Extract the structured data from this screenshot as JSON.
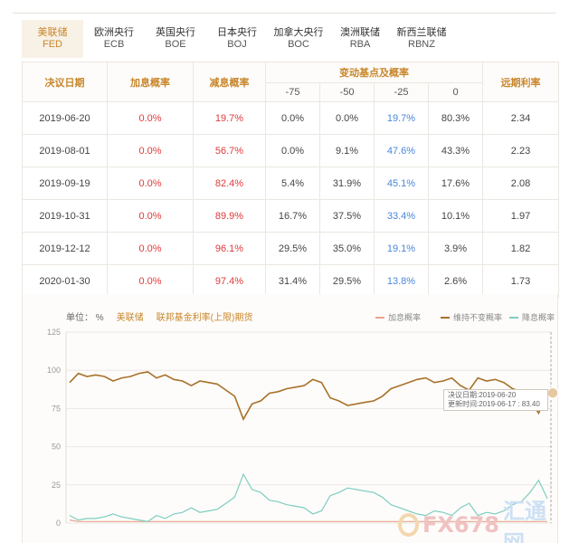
{
  "tabs": [
    {
      "cn": "美联储",
      "en": "FED",
      "active": true
    },
    {
      "cn": "欧洲央行",
      "en": "ECB"
    },
    {
      "cn": "英国央行",
      "en": "BOE"
    },
    {
      "cn": "日本央行",
      "en": "BOJ"
    },
    {
      "cn": "加拿大央行",
      "en": "BOC"
    },
    {
      "cn": "澳洲联储",
      "en": "RBA"
    },
    {
      "cn": "新西兰联储",
      "en": "RBNZ"
    }
  ],
  "table": {
    "headers": {
      "date": "决议日期",
      "hike": "加息概率",
      "cut": "减息概率",
      "change_group": "变动基点及概率",
      "bps": [
        "-75",
        "-50",
        "-25",
        "0"
      ],
      "forward": "远期利率"
    },
    "rows": [
      {
        "date": "2019-06-20",
        "hike": "0.0%",
        "cut": "19.7%",
        "m75": "0.0%",
        "m50": "0.0%",
        "m25": "19.7%",
        "z": "80.3%",
        "fwd": "2.34"
      },
      {
        "date": "2019-08-01",
        "hike": "0.0%",
        "cut": "56.7%",
        "m75": "0.0%",
        "m50": "9.1%",
        "m25": "47.6%",
        "z": "43.3%",
        "fwd": "2.23"
      },
      {
        "date": "2019-09-19",
        "hike": "0.0%",
        "cut": "82.4%",
        "m75": "5.4%",
        "m50": "31.9%",
        "m25": "45.1%",
        "z": "17.6%",
        "fwd": "2.08"
      },
      {
        "date": "2019-10-31",
        "hike": "0.0%",
        "cut": "89.9%",
        "m75": "16.7%",
        "m50": "37.5%",
        "m25": "33.4%",
        "z": "10.1%",
        "fwd": "1.97"
      },
      {
        "date": "2019-12-12",
        "hike": "0.0%",
        "cut": "96.1%",
        "m75": "29.5%",
        "m50": "35.0%",
        "m25": "19.1%",
        "z": "3.9%",
        "fwd": "1.82"
      },
      {
        "date": "2020-01-30",
        "hike": "0.0%",
        "cut": "97.4%",
        "m75": "31.4%",
        "m50": "29.5%",
        "m25": "13.8%",
        "z": "2.6%",
        "fwd": "1.73"
      }
    ]
  },
  "chart_head": {
    "unit": "单位： %",
    "bank": "美联储",
    "desc": "联邦基金利率(上限)期货"
  },
  "legend": {
    "hike": "加息概率",
    "hold": "维持不变概率",
    "cut": "降息概率"
  },
  "tooltip": {
    "line1": "决议日期:2019-06-20",
    "line2": "更新时间:2019-06-17 : 83.40"
  },
  "watermark": {
    "a": "FX678",
    "b": "汇通网"
  },
  "colors": {
    "accent": "#c8862b",
    "hold": "#a8712a",
    "hike": "#e8a48c",
    "cut": "#7ecdc0",
    "red": "#e03a3a",
    "blue": "#4a86d8"
  },
  "chart_data": {
    "type": "line",
    "ylim": [
      0,
      125
    ],
    "yticks": [
      "125",
      "100",
      "75",
      "50",
      "25",
      "0"
    ],
    "series": [
      {
        "name": "维持不变概率",
        "values": [
          92,
          98,
          96,
          97,
          96,
          93,
          95,
          96,
          98,
          99,
          95,
          97,
          94,
          93,
          90,
          93,
          92,
          91,
          87,
          83,
          68,
          78,
          80,
          85,
          86,
          88,
          89,
          90,
          94,
          92,
          82,
          80,
          77,
          78,
          79,
          80,
          83,
          88,
          90,
          92,
          94,
          95,
          92,
          93,
          95,
          90,
          87,
          95,
          93,
          94,
          92,
          88,
          86,
          80,
          72,
          84
        ]
      },
      {
        "name": "加息概率",
        "values": [
          2,
          1,
          1,
          1,
          1,
          1,
          1,
          1,
          1,
          1,
          1,
          1,
          1,
          1,
          1,
          1,
          1,
          1,
          1,
          1,
          1,
          1,
          1,
          1,
          1,
          1,
          1,
          1,
          1,
          1,
          1,
          1,
          1,
          1,
          1,
          1,
          1,
          1,
          1,
          1,
          1,
          1,
          1,
          1,
          1,
          1,
          1,
          1,
          1,
          1,
          1,
          1,
          1,
          1,
          1,
          1
        ]
      },
      {
        "name": "降息概率",
        "values": [
          5,
          2,
          3,
          3,
          4,
          6,
          4,
          3,
          2,
          1,
          5,
          3,
          6,
          7,
          10,
          7,
          8,
          9,
          13,
          17,
          32,
          22,
          20,
          15,
          14,
          12,
          11,
          10,
          6,
          8,
          18,
          20,
          23,
          22,
          21,
          20,
          17,
          12,
          10,
          8,
          6,
          5,
          8,
          7,
          5,
          10,
          13,
          5,
          7,
          6,
          8,
          12,
          14,
          20,
          28,
          16
        ]
      }
    ]
  }
}
